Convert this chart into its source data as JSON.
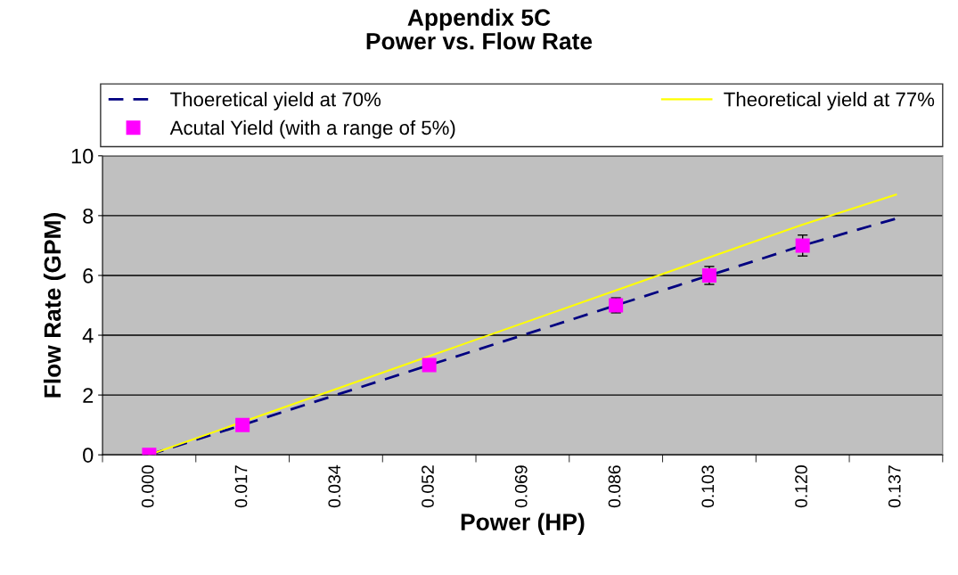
{
  "chart_data": {
    "type": "line",
    "title": "Appendix 5C\nPower vs. Flow Rate",
    "xlabel": "Power (HP)",
    "ylabel": "Flow Rate (GPM)",
    "categories": [
      "0.000",
      "0.017",
      "0.034",
      "0.052",
      "0.069",
      "0.086",
      "0.103",
      "0.120",
      "0.137"
    ],
    "series": [
      {
        "name": "Thoeretical yield at 70%",
        "color": "#000080",
        "line_style": "dashed",
        "marker": "none",
        "values": [
          0,
          1,
          2,
          3,
          4,
          5,
          6,
          7,
          7.9
        ]
      },
      {
        "name": "Theoretical yield at 77%",
        "color": "#ffff00",
        "line_style": "solid",
        "marker": "none",
        "values": [
          0,
          1.1,
          2.2,
          3.3,
          4.4,
          5.5,
          6.6,
          7.7,
          8.7
        ]
      },
      {
        "name": "Acutal Yield (with a range of 5%)",
        "type": "scatter",
        "color": "#ff00ff",
        "marker": "square",
        "values": [
          0,
          1,
          null,
          3,
          null,
          5,
          6,
          7,
          null
        ],
        "errors": [
          null,
          null,
          null,
          null,
          null,
          0.25,
          0.3,
          0.35,
          null
        ]
      }
    ],
    "ylim": [
      0,
      10
    ],
    "yticks": [
      0,
      2,
      4,
      6,
      8,
      10
    ],
    "grid": "y",
    "legend": "top"
  }
}
